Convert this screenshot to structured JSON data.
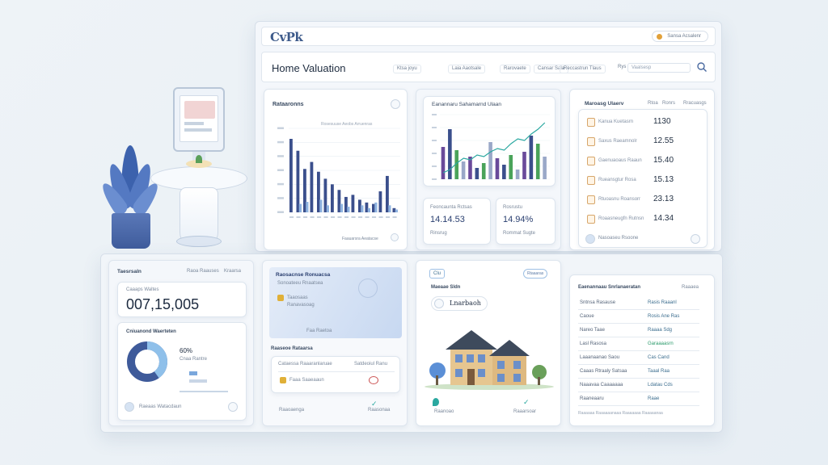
{
  "app": {
    "logo": "CvPk",
    "account_label": "Sansa Acsalenr"
  },
  "header": {
    "title": "Home Valuation",
    "nav": [
      "Ktsa joyu",
      "Laia Aaotsale",
      "Rarovaete",
      "Cansar Sala",
      "Reccastrun Tlaus"
    ],
    "search_label": "Rys",
    "search_placeholder": "Vaalsesp"
  },
  "chart1": {
    "title": "Rataaronns",
    "subtitle": "Rosesuuse Aeobs Arruenras",
    "footer": "Faauarsra Aeatacse",
    "chart_data": {
      "type": "bar",
      "categories": [
        "1",
        "2",
        "3",
        "4",
        "5",
        "6",
        "7",
        "8",
        "9",
        "10",
        "11",
        "12",
        "13",
        "14",
        "15",
        "16"
      ],
      "series": [
        {
          "values": [
            105,
            88,
            62,
            72,
            58,
            48,
            40,
            32,
            22,
            25,
            18,
            14,
            12,
            30,
            52,
            6
          ]
        },
        {
          "values": [
            0,
            12,
            15,
            0,
            18,
            10,
            0,
            12,
            8,
            0,
            10,
            6,
            14,
            0,
            10,
            4
          ]
        }
      ],
      "ylim": [
        0,
        120
      ],
      "grid": true
    }
  },
  "chart2": {
    "title": "Eanannaru Sahamarnd Ulaan",
    "chart_data": {
      "type": "bar",
      "categories": [
        "1",
        "2",
        "3",
        "4",
        "5",
        "6",
        "7",
        "8",
        "9",
        "10",
        "11",
        "12",
        "13",
        "14",
        "15",
        "16"
      ],
      "series": [
        {
          "name": "bars",
          "values": [
            40,
            62,
            36,
            22,
            28,
            14,
            20,
            46,
            26,
            18,
            30,
            12,
            34,
            54,
            44,
            28
          ]
        },
        {
          "name": "trend",
          "values": [
            8,
            12,
            20,
            26,
            24,
            30,
            28,
            34,
            38,
            36,
            44,
            50,
            48,
            56,
            62,
            70
          ]
        }
      ],
      "ylim": [
        0,
        80
      ],
      "grid": true
    }
  },
  "stat_left": {
    "label": "Feoncaunta Rctsas",
    "value": "14.14.53",
    "foot": "Rinsrug"
  },
  "stat_right": {
    "label": "Rosrustu",
    "value": "14.94%",
    "foot": "Rommat Sugte"
  },
  "listing": {
    "title": "Maroasg Ulaerv",
    "tabs": [
      "Rtoa",
      "Ronrs",
      "Rracuasgs"
    ],
    "rows": [
      {
        "label": "Kanua Kuetasrn",
        "value": "1130"
      },
      {
        "label": "Saxus Raeamnolr",
        "value": "12.55"
      },
      {
        "label": "Gaenuaoaus Raaun",
        "value": "15.40"
      },
      {
        "label": "Rueansgtur Rosa",
        "value": "15.13"
      },
      {
        "label": "Rtuoasnu Roansorr",
        "value": "23.13"
      },
      {
        "label": "Roaasneugfn Rutnsn",
        "value": "14.34"
      }
    ],
    "footer": "Nasoaseu Rsoone"
  },
  "summary": {
    "title": "Taesrsaln",
    "tabs": [
      "Raoa Raauses",
      "Kraarsa"
    ],
    "value_label": "Caaaps Waltes",
    "value": "007,15,005",
    "donut_title": "Cniuanond Waerteten",
    "donut_value": "60%",
    "donut_sub": "Cnaa Rantre",
    "donut_percent": 60,
    "footer": "Raeaas Watacdaun"
  },
  "promo": {
    "title": "Raosacnse Ronuacsa",
    "subtitle": "Sonoateeu Rnaatsea",
    "badge_label": "Taaosaas",
    "badge_sub": "Ranavasoag",
    "caption": "Faa Raetoa",
    "section": "Raaseoe Rataarsa",
    "row1": "Cataessa Raaaranlaruae",
    "row1b": "Satdeoiul Ranu",
    "row2": "Faaa Saaeaaun",
    "foot_left": "Raaoaenga",
    "foot_right": "Raasonaa"
  },
  "property": {
    "tag": "Clu",
    "pill": "Rtaaaras",
    "title": "Maeaae Sldn",
    "address": "Lnarbaoh",
    "foot_left": "Raanoao",
    "foot_right": "Raaarsoar"
  },
  "details": {
    "title": "Eaenannaau Snrlanaeratan",
    "action": "Raaaea",
    "rows": [
      {
        "k": "Sntnsa Rasause",
        "v": "Rasis Raaanl"
      },
      {
        "k": "Caoue",
        "v": "Rosis Ane Ras"
      },
      {
        "k": "Nareo Taae",
        "v": "Raaaa Sdg"
      },
      {
        "k": "Lasl Rasosa",
        "v": "Garaaaasrn"
      },
      {
        "k": "Laaanaanao Saou",
        "v": "Cas Cand"
      },
      {
        "k": "Caaas Rtraaly Satsaa",
        "v": "Taaal Raa"
      },
      {
        "k": "Naaavaa Caaaaaaa",
        "v": "Ldatau Cds"
      },
      {
        "k": "Raaneaaru",
        "v": "Raae"
      }
    ],
    "footer": "Raaaaaa Raaaaaanaaa Raaaaaaa Raaaaanaa"
  },
  "colors": {
    "accent": "#3d5a8a",
    "bar_dark": "#3b4f8c",
    "bar_light": "#8fb3e0",
    "green": "#4aa35a",
    "purple": "#6a4a9a",
    "teal": "#2aa8a0"
  }
}
